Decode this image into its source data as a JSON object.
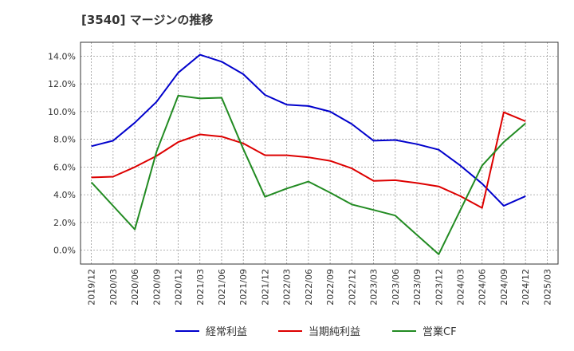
{
  "chart_data": {
    "type": "line",
    "title": "[3540]  マージンの推移",
    "xlabel": "",
    "ylabel": "",
    "x": [
      "2019/12",
      "2020/03",
      "2020/06",
      "2020/09",
      "2020/12",
      "2021/03",
      "2021/06",
      "2021/09",
      "2021/12",
      "2022/03",
      "2022/06",
      "2022/09",
      "2022/12",
      "2023/03",
      "2023/06",
      "2023/09",
      "2023/12",
      "2024/03",
      "2024/06",
      "2024/09",
      "2024/12",
      "2025/03"
    ],
    "ylim": [
      -1.0,
      15.0
    ],
    "yticks": [
      0.0,
      2.0,
      4.0,
      6.0,
      8.0,
      10.0,
      12.0,
      14.0
    ],
    "ytick_labels": [
      "0.0%",
      "2.0%",
      "4.0%",
      "6.0%",
      "8.0%",
      "10.0%",
      "12.0%",
      "14.0%"
    ],
    "grid": true,
    "legend_position": "bottom",
    "series": [
      {
        "name": "経常利益",
        "color": "#0000cc",
        "values": [
          7.5,
          7.9,
          9.2,
          10.7,
          12.8,
          14.1,
          13.6,
          12.7,
          11.2,
          10.5,
          10.4,
          10.0,
          9.1,
          7.9,
          7.95,
          7.65,
          7.25,
          6.1,
          4.8,
          3.2,
          3.9,
          null
        ]
      },
      {
        "name": "当期純利益",
        "color": "#dd0000",
        "values": [
          5.25,
          5.3,
          6.0,
          6.8,
          7.8,
          8.35,
          8.2,
          7.7,
          6.85,
          6.85,
          6.7,
          6.45,
          5.9,
          5.0,
          5.05,
          4.85,
          4.6,
          3.9,
          3.05,
          9.95,
          9.3,
          null
        ]
      },
      {
        "name": "営業CF",
        "color": "#228b22",
        "values": [
          4.9,
          3.2,
          1.5,
          7.1,
          11.15,
          10.95,
          11.0,
          7.3,
          3.85,
          4.45,
          4.95,
          4.15,
          3.3,
          2.9,
          2.5,
          1.1,
          -0.3,
          2.9,
          6.1,
          7.8,
          9.15,
          null
        ]
      }
    ]
  }
}
